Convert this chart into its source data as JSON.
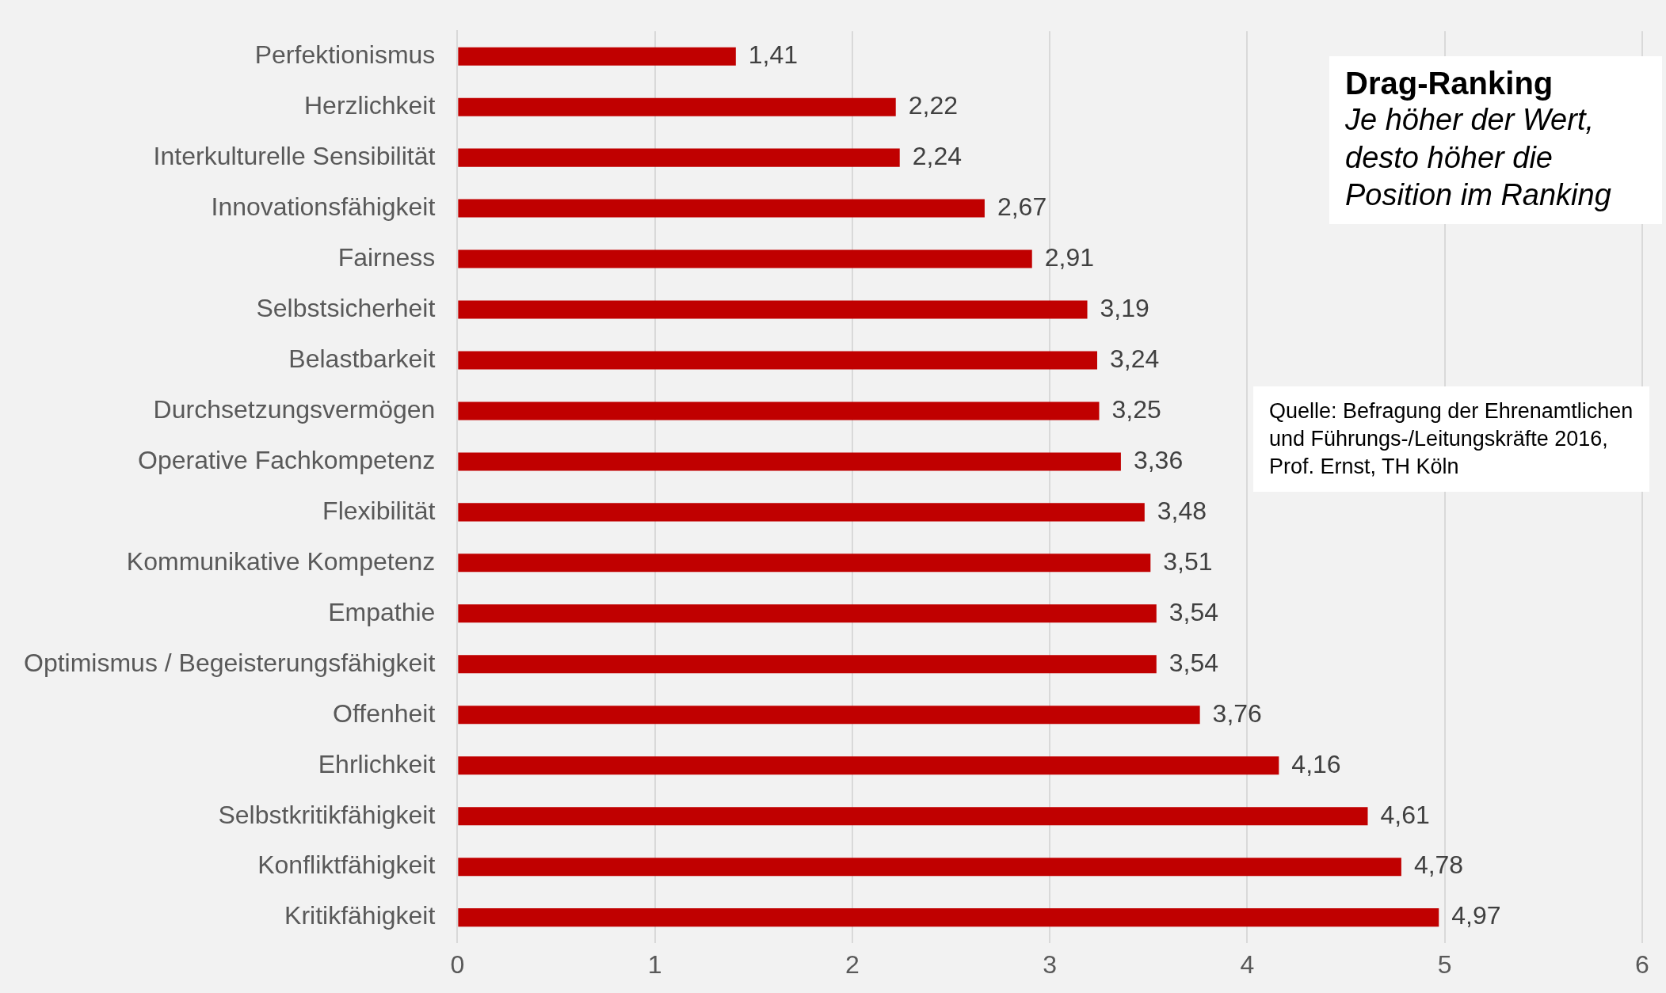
{
  "chart_data": {
    "type": "bar",
    "orientation": "horizontal",
    "title": "Drag-Ranking",
    "subtitle": "Je höher der Wert, desto höher die Position im Ranking",
    "categories": [
      "Perfektionismus",
      "Herzlichkeit",
      "Interkulturelle Sensibilität",
      "Innovationsfähigkeit",
      "Fairness",
      "Selbstsicherheit",
      "Belastbarkeit",
      "Durchsetzungsvermögen",
      "Operative Fachkompetenz",
      "Flexibilität",
      "Kommunikative Kompetenz",
      "Empathie",
      "Optimismus / Begeisterungsfähigkeit",
      "Offenheit",
      "Ehrlichkeit",
      "Selbstkritikfähigkeit",
      "Konfliktfähigkeit",
      "Kritikfähigkeit"
    ],
    "values": [
      1.41,
      2.22,
      2.24,
      2.67,
      2.91,
      3.19,
      3.24,
      3.25,
      3.36,
      3.48,
      3.51,
      3.54,
      3.54,
      3.76,
      4.16,
      4.61,
      4.78,
      4.97
    ],
    "value_labels": [
      "1,41",
      "2,22",
      "2,24",
      "2,67",
      "2,91",
      "3,19",
      "3,24",
      "3,25",
      "3,36",
      "3,48",
      "3,51",
      "3,54",
      "3,54",
      "3,76",
      "4,16",
      "4,61",
      "4,78",
      "4,97"
    ],
    "color": "#c00000",
    "xlim": [
      0,
      6
    ],
    "xticks": [
      0,
      1,
      2,
      3,
      4,
      5,
      6
    ],
    "grid": "x",
    "legend": false,
    "annotations": [
      "Quelle: Befragung der Ehrenamtlichen und Führungs-/Leitungskräfte 2016, Prof. Ernst, TH Köln"
    ]
  }
}
